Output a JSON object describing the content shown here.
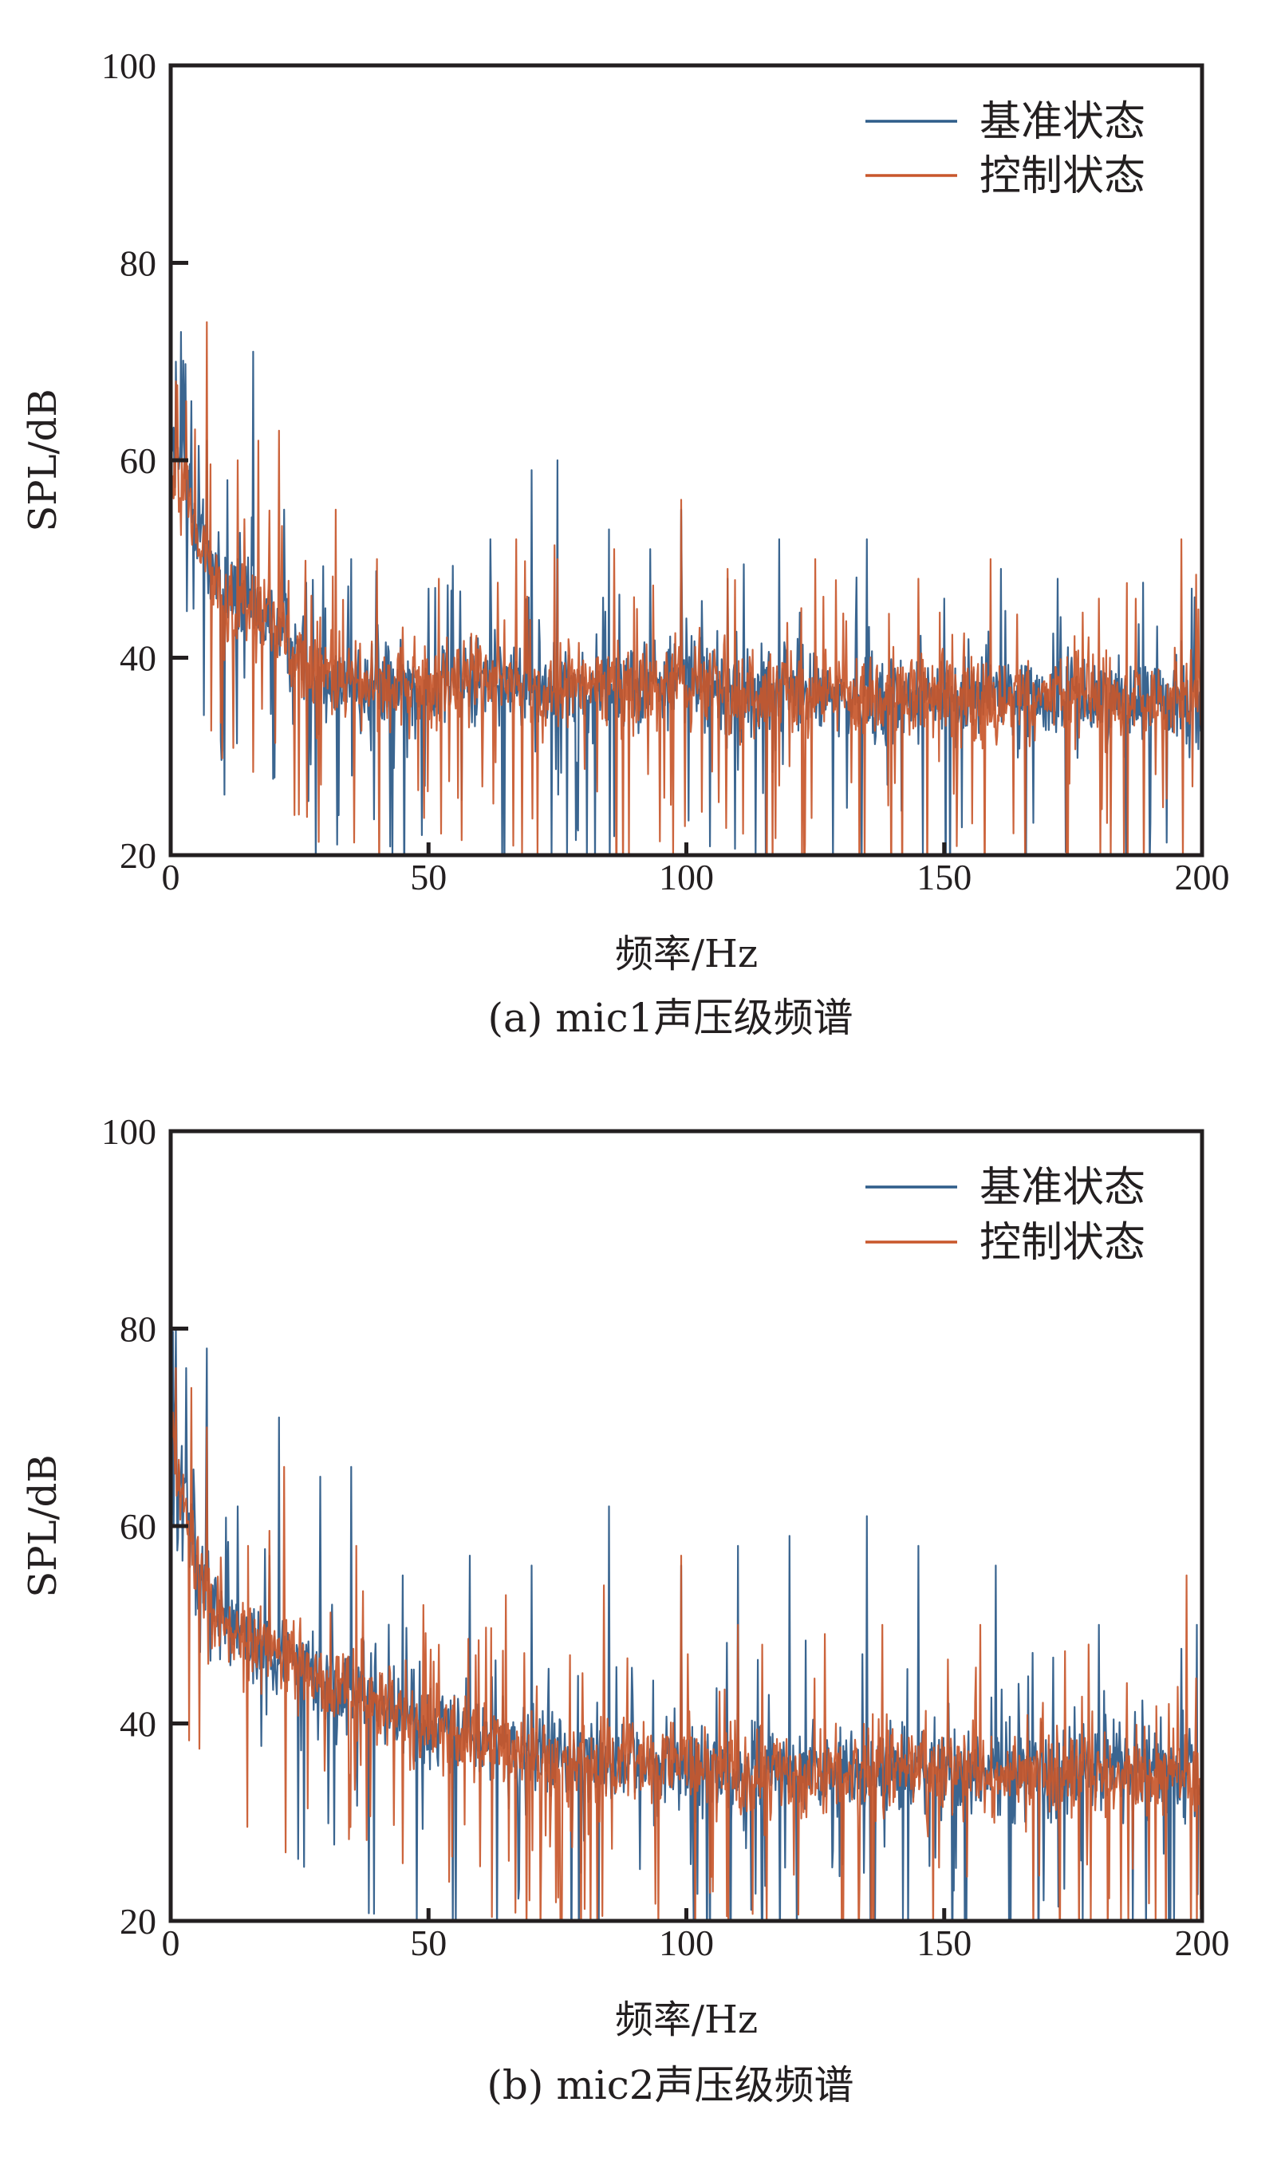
{
  "figure": {
    "colors": {
      "baseline": "#2f5d8a",
      "control": "#c8572b",
      "axis": "#231f20"
    }
  },
  "chart_data": [
    {
      "type": "line",
      "title": "",
      "caption": "(a) mic1声压级频谱",
      "xlabel": "频率/Hz",
      "ylabel": "SPL/dB",
      "xlim": [
        0,
        200
      ],
      "ylim": [
        20,
        100
      ],
      "xticks": [
        "0",
        "50",
        "100",
        "150",
        "200"
      ],
      "yticks": [
        "20",
        "40",
        "60",
        "80",
        "100"
      ],
      "grid": false,
      "legend_position": "top-right",
      "series": [
        {
          "name": "基准状态",
          "color": "#2f5d8a",
          "peaks": [
            [
              1,
              70
            ],
            [
              2,
              73
            ],
            [
              4,
              66
            ],
            [
              7,
              62
            ],
            [
              11,
              58
            ],
            [
              16,
              71
            ],
            [
              22,
              55
            ],
            [
              35,
              50
            ],
            [
              50,
              47
            ],
            [
              62,
              52
            ],
            [
              70,
              59
            ],
            [
              75,
              60
            ],
            [
              85,
              53
            ],
            [
              93,
              51
            ],
            [
              99,
              55
            ],
            [
              108,
              48
            ],
            [
              118,
              52
            ],
            [
              135,
              52
            ],
            [
              150,
              46
            ],
            [
              161,
              49
            ],
            [
              172,
              48
            ],
            [
              198,
              47
            ]
          ],
          "x": [
            0,
            10,
            20,
            30,
            40,
            50,
            60,
            70,
            80,
            90,
            100,
            110,
            120,
            130,
            140,
            150,
            160,
            170,
            180,
            190,
            200
          ],
          "values": [
            62,
            47,
            43,
            38,
            37,
            37,
            38,
            37,
            37,
            37,
            38,
            36,
            37,
            36,
            36,
            36,
            36,
            36,
            36,
            36,
            36
          ]
        },
        {
          "name": "控制状态",
          "color": "#c8572b",
          "peaks": [
            [
              1,
              68
            ],
            [
              3,
              66
            ],
            [
              7,
              74
            ],
            [
              13,
              60
            ],
            [
              17,
              62
            ],
            [
              21,
              63
            ],
            [
              32,
              55
            ],
            [
              40,
              50
            ],
            [
              52,
              48
            ],
            [
              67,
              52
            ],
            [
              75,
              50
            ],
            [
              86,
              51
            ],
            [
              99,
              56
            ],
            [
              108,
              49
            ],
            [
              125,
              50
            ],
            [
              145,
              48
            ],
            [
              159,
              50
            ],
            [
              180,
              46
            ],
            [
              196,
              52
            ]
          ],
          "x": [
            0,
            10,
            20,
            30,
            40,
            50,
            60,
            70,
            80,
            90,
            100,
            110,
            120,
            130,
            140,
            150,
            160,
            170,
            180,
            190,
            200
          ],
          "values": [
            60,
            46,
            43,
            38,
            37,
            37,
            38,
            37,
            37,
            37,
            38,
            36,
            37,
            36,
            36,
            36,
            36,
            36,
            36,
            36,
            36
          ]
        }
      ]
    },
    {
      "type": "line",
      "title": "",
      "caption": "(b) mic2声压级频谱",
      "xlabel": "频率/Hz",
      "ylabel": "SPL/dB",
      "xlim": [
        0,
        200
      ],
      "ylim": [
        20,
        100
      ],
      "xticks": [
        "0",
        "50",
        "100",
        "150",
        "200"
      ],
      "yticks": [
        "20",
        "40",
        "60",
        "80",
        "100"
      ],
      "grid": false,
      "legend_position": "top-right",
      "series": [
        {
          "name": "基准状态",
          "color": "#2f5d8a",
          "peaks": [
            [
              1,
              80
            ],
            [
              3,
              76
            ],
            [
              7,
              78
            ],
            [
              13,
              62
            ],
            [
              21,
              71
            ],
            [
              29,
              65
            ],
            [
              35,
              66
            ],
            [
              45,
              55
            ],
            [
              58,
              57
            ],
            [
              70,
              56
            ],
            [
              85,
              62
            ],
            [
              99,
              56
            ],
            [
              110,
              58
            ],
            [
              120,
              59
            ],
            [
              135,
              61
            ],
            [
              145,
              58
            ],
            [
              160,
              56
            ],
            [
              180,
              50
            ],
            [
              199,
              50
            ]
          ],
          "x": [
            0,
            5,
            10,
            20,
            30,
            40,
            50,
            60,
            70,
            80,
            90,
            100,
            110,
            120,
            130,
            140,
            150,
            160,
            170,
            180,
            190,
            200
          ],
          "values": [
            72,
            56,
            50,
            47,
            44,
            42,
            40,
            38,
            37,
            36,
            36,
            36,
            35,
            35,
            35,
            35,
            35,
            35,
            35,
            35,
            35,
            35
          ]
        },
        {
          "name": "控制状态",
          "color": "#c8572b",
          "peaks": [
            [
              1,
              76
            ],
            [
              4,
              74
            ],
            [
              7,
              70
            ],
            [
              15,
              58
            ],
            [
              22,
              66
            ],
            [
              36,
              58
            ],
            [
              49,
              52
            ],
            [
              65,
              53
            ],
            [
              84,
              54
            ],
            [
              99,
              57
            ],
            [
              110,
              50
            ],
            [
              138,
              50
            ],
            [
              157,
              50
            ],
            [
              178,
              48
            ],
            [
              197,
              55
            ]
          ],
          "x": [
            0,
            5,
            10,
            20,
            30,
            40,
            50,
            60,
            70,
            80,
            90,
            100,
            110,
            120,
            130,
            140,
            150,
            160,
            170,
            180,
            190,
            200
          ],
          "values": [
            70,
            55,
            50,
            47,
            44,
            42,
            40,
            38,
            37,
            36,
            36,
            36,
            35,
            35,
            35,
            35,
            35,
            35,
            35,
            35,
            35,
            35
          ]
        }
      ]
    }
  ]
}
